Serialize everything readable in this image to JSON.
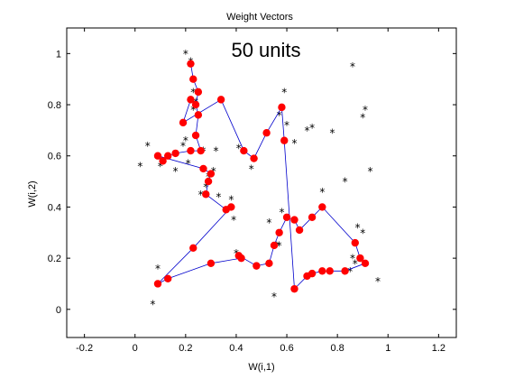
{
  "chart_data": {
    "type": "scatter",
    "title": "Weight Vectors",
    "xlabel": "W(i,1)",
    "ylabel": "W(i,2)",
    "annotation": "50 units",
    "xlim": [
      -0.27,
      1.27
    ],
    "ylim": [
      -0.11,
      1.1
    ],
    "xticks": [
      -0.2,
      0,
      0.2,
      0.4,
      0.6,
      0.8,
      1,
      1.2
    ],
    "yticks": [
      0,
      0.2,
      0.4,
      0.6,
      0.8,
      1
    ],
    "xtick_labels": [
      "-0.2",
      "0",
      "0.2",
      "0.4",
      "0.6",
      "0.8",
      "1",
      "1.2"
    ],
    "ytick_labels": [
      "0",
      "0.2",
      "0.4",
      "0.6",
      "0.8",
      "1"
    ],
    "grid": false,
    "colors": {
      "weights": "#ff0000",
      "connections": "#0000cc",
      "inputs": "#000000"
    },
    "weights": {
      "x": [
        0.22,
        0.23,
        0.25,
        0.24,
        0.25,
        0.24,
        0.26,
        0.22,
        0.16,
        0.13,
        0.11,
        0.09,
        0.27,
        0.3,
        0.29,
        0.28,
        0.36,
        0.38,
        0.23,
        0.09,
        0.13,
        0.3,
        0.42,
        0.41,
        0.48,
        0.53,
        0.55,
        0.57,
        0.6,
        0.63,
        0.65,
        0.7,
        0.74,
        0.87,
        0.89,
        0.91,
        0.83,
        0.77,
        0.74,
        0.7,
        0.68,
        0.63,
        0.59,
        0.58,
        0.52,
        0.47,
        0.43,
        0.34,
        0.19,
        0.22
      ],
      "y": [
        0.96,
        0.9,
        0.85,
        0.8,
        0.76,
        0.68,
        0.62,
        0.62,
        0.61,
        0.6,
        0.58,
        0.6,
        0.55,
        0.53,
        0.5,
        0.45,
        0.39,
        0.4,
        0.24,
        0.1,
        0.12,
        0.18,
        0.2,
        0.21,
        0.17,
        0.18,
        0.25,
        0.3,
        0.36,
        0.35,
        0.31,
        0.36,
        0.4,
        0.26,
        0.2,
        0.18,
        0.15,
        0.15,
        0.15,
        0.14,
        0.13,
        0.08,
        0.66,
        0.79,
        0.69,
        0.59,
        0.62,
        0.82,
        0.73,
        0.82
      ]
    },
    "inputs": {
      "x": [
        0.2,
        0.22,
        0.23,
        0.24,
        0.23,
        0.2,
        0.27,
        0.21,
        0.19,
        0.16,
        0.1,
        0.02,
        0.05,
        0.09,
        0.26,
        0.31,
        0.29,
        0.28,
        0.33,
        0.38,
        0.39,
        0.4,
        0.32,
        0.41,
        0.46,
        0.53,
        0.56,
        0.57,
        0.58,
        0.59,
        0.57,
        0.6,
        0.63,
        0.68,
        0.7,
        0.74,
        0.78,
        0.83,
        0.86,
        0.88,
        0.9,
        0.91,
        0.86,
        0.93,
        0.87,
        0.96,
        0.85,
        0.9,
        0.55,
        0.07
      ],
      "y": [
        1.0,
        0.97,
        0.85,
        0.81,
        0.78,
        0.66,
        0.62,
        0.57,
        0.64,
        0.54,
        0.56,
        0.56,
        0.64,
        0.16,
        0.45,
        0.54,
        0.52,
        0.48,
        0.44,
        0.43,
        0.35,
        0.22,
        0.62,
        0.63,
        0.55,
        0.34,
        0.25,
        0.25,
        0.38,
        0.85,
        0.76,
        0.72,
        0.65,
        0.7,
        0.71,
        0.46,
        0.69,
        0.5,
        0.95,
        0.32,
        0.75,
        0.78,
        0.2,
        0.54,
        0.18,
        0.11,
        0.15,
        0.3,
        0.05,
        0.02
      ]
    }
  }
}
